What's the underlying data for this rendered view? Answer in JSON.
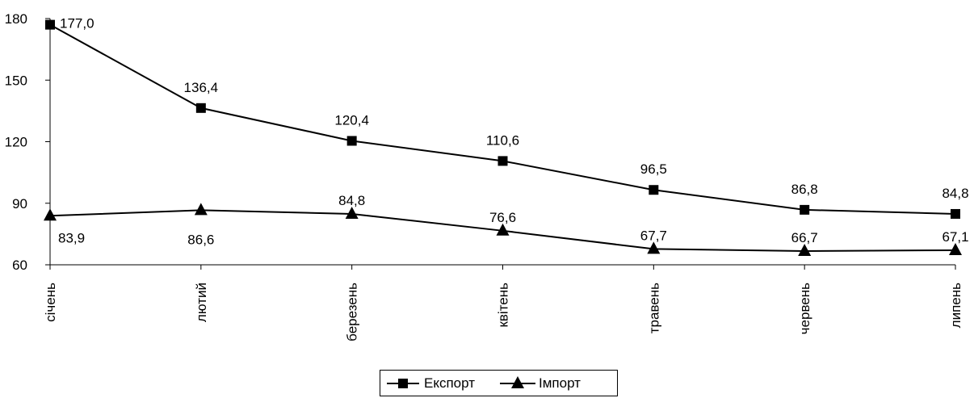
{
  "chart_data": {
    "type": "line",
    "title": "",
    "xlabel": "",
    "ylabel": "",
    "ylim": [
      60,
      180
    ],
    "yticks": [
      "60",
      "90",
      "120",
      "150",
      "180"
    ],
    "categories": [
      "січень",
      "лютий",
      "березень",
      "квітень",
      "травень",
      "червень",
      "липень"
    ],
    "grid": false,
    "legend": "bottom",
    "series": [
      {
        "name": "Експорт",
        "marker": "square",
        "color": "#000000",
        "values": [
          177.0,
          136.4,
          120.4,
          110.6,
          96.5,
          86.8,
          84.8
        ],
        "labels": [
          "177,0",
          "136,4",
          "120,4",
          "110,6",
          "96,5",
          "86,8",
          "84,8"
        ]
      },
      {
        "name": "Імпорт",
        "marker": "triangle",
        "color": "#000000",
        "values": [
          83.9,
          86.6,
          84.8,
          76.6,
          67.7,
          66.7,
          67.1
        ],
        "labels": [
          "83,9",
          "86,6",
          "84,8",
          "76,6",
          "67,7",
          "66,7",
          "67,1"
        ]
      }
    ]
  }
}
